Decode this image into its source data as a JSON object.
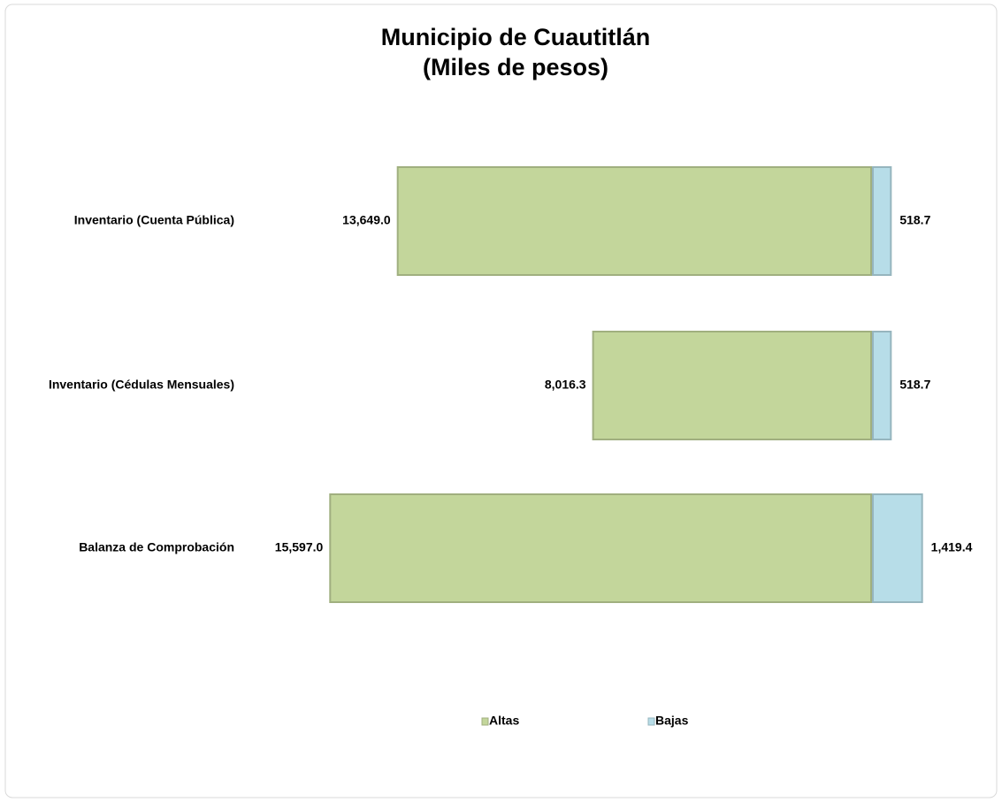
{
  "chart_data": {
    "type": "bar",
    "title": "Municipio de Cuautitlán",
    "subtitle": "(Miles de pesos)",
    "categories": [
      "Inventario (Cuenta Pública)",
      "Inventario (Cédulas Mensuales)",
      "Balanza de Comprobación"
    ],
    "series": [
      {
        "name": "Altas",
        "color": "#c3d69b",
        "values": [
          13649.0,
          8016.3,
          15597.0
        ],
        "value_labels": [
          "13,649.0",
          "8,016.3",
          "15,597.0"
        ]
      },
      {
        "name": "Bajas",
        "color": "#b7dde8",
        "values": [
          518.7,
          518.7,
          1419.4
        ],
        "value_labels": [
          "518.7",
          "518.7",
          "1,419.4"
        ]
      }
    ],
    "legend": "bottom"
  }
}
